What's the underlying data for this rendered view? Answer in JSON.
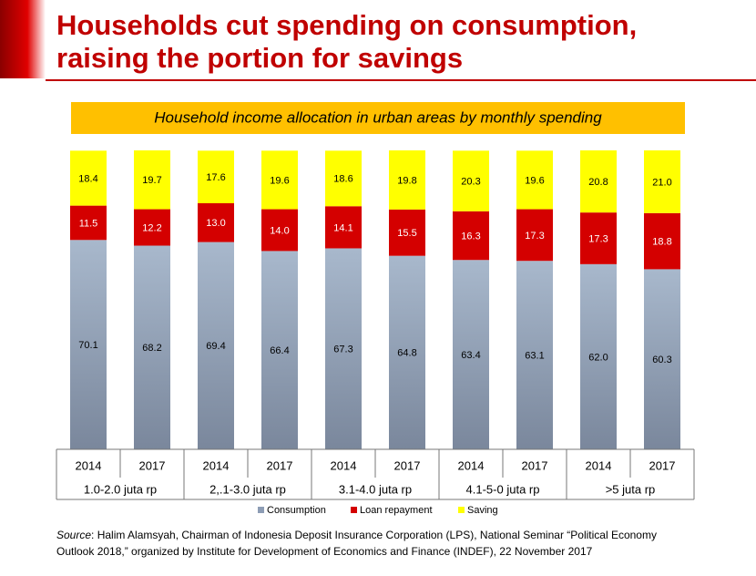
{
  "chart_data": {
    "type": "stacked-bar",
    "title_lines": [
      "Households cut spending on consumption,",
      "raising the portion for savings"
    ],
    "subtitle": "Household income allocation in urban areas by monthly spending",
    "categories": [
      "2014",
      "2017",
      "2014",
      "2017",
      "2014",
      "2017",
      "2014",
      "2017",
      "2014",
      "2017"
    ],
    "groups": [
      "1.0-2.0 juta rp",
      "2,.1-3.0 juta rp",
      "3.1-4.0 juta rp",
      "4.1-5-0 juta rp",
      ">5 juta rp"
    ],
    "series": [
      {
        "name": "Consumption",
        "color": "#8d9db5",
        "values": [
          70.1,
          68.2,
          69.4,
          66.4,
          67.3,
          64.8,
          63.4,
          63.1,
          62.0,
          60.3
        ],
        "value_labels": [
          "70.1",
          "68.2",
          "69.4",
          "66.4",
          "67.3",
          "64.8",
          "63.4",
          "63.1",
          "62.0",
          "60.3"
        ]
      },
      {
        "name": "Loan repayment",
        "color": "#d40000",
        "values": [
          11.5,
          12.2,
          13.0,
          14.0,
          14.1,
          15.5,
          16.3,
          17.3,
          17.3,
          18.8
        ],
        "value_labels": [
          "11.5",
          "12.2",
          "13.0",
          "14.0",
          "14.1",
          "15.5",
          "16.3",
          "17.3",
          "17.3",
          "18.8"
        ]
      },
      {
        "name": "Saving",
        "color": "#ffff00",
        "values": [
          18.4,
          19.7,
          17.6,
          19.6,
          18.6,
          19.8,
          20.3,
          19.6,
          20.8,
          21.0
        ],
        "value_labels": [
          "18.4",
          "19.7",
          "17.6",
          "19.6",
          "18.6",
          "19.8",
          "20.3",
          "19.6",
          "20.8",
          "21.0"
        ]
      }
    ],
    "source": {
      "label": "Source",
      "text": ": Halim Alamsyah, Chairman of Indonesia Deposit Insurance Corporation (LPS), National Seminar “Political Economy Outlook 2018,” organized by Institute for Development of Economics and Finance (INDEF), 22 November 2017"
    }
  }
}
